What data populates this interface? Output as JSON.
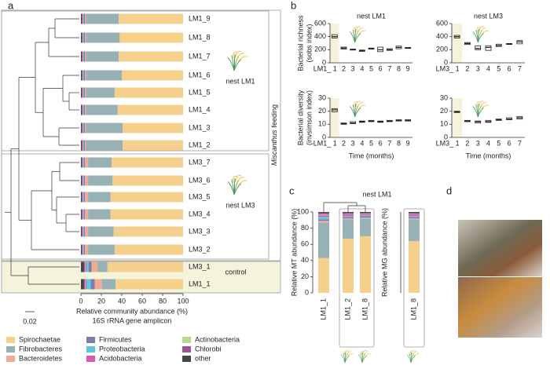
{
  "panel_labels": [
    "a",
    "b",
    "c",
    "d"
  ],
  "chart_data": [
    {
      "type": "stacked-bar-horizontal",
      "categories": [
        "LM1_9",
        "LM1_8",
        "LM1_7",
        "LM1_6",
        "LM1_5",
        "LM1_4",
        "LM1_3",
        "LM1_2",
        "LM3_7",
        "LM3_6",
        "LM3_5",
        "LM3_4",
        "LM3_3",
        "LM3_2",
        "LM3_1",
        "LM1_1"
      ],
      "series": [
        {
          "name": "Spirochaetae",
          "color": "#f5d08c",
          "values": [
            63,
            62,
            63,
            60,
            67,
            64,
            59,
            59,
            70,
            69,
            71,
            71,
            68,
            67,
            74,
            66
          ]
        },
        {
          "name": "Fibrobacteres",
          "color": "#98b1b5",
          "values": [
            32,
            33,
            32,
            35,
            28,
            31,
            36,
            36,
            23,
            24,
            22,
            22,
            25,
            26,
            9.5,
            13.5
          ]
        },
        {
          "name": "Bacteroidetes",
          "color": "#f3aa92",
          "values": [
            1,
            1,
            1,
            1,
            1,
            1,
            1,
            1,
            3,
            3,
            3,
            3,
            3,
            3,
            6,
            7
          ]
        },
        {
          "name": "Firmicutes",
          "color": "#7b7fae",
          "values": [
            1.2,
            1.2,
            1.2,
            1.2,
            1.2,
            1.2,
            1.2,
            1.2,
            1,
            1,
            1,
            1,
            1,
            1,
            3,
            4
          ]
        },
        {
          "name": "Proteobacteria",
          "color": "#5cc7df",
          "values": [
            0.5,
            0.5,
            0.5,
            0.5,
            0.5,
            0.5,
            0.5,
            0.5,
            0.7,
            0.7,
            0.7,
            0.7,
            0.7,
            0.7,
            2,
            4
          ]
        },
        {
          "name": "Acidobacteria",
          "color": "#dd58b6",
          "values": [
            0.5,
            0.5,
            0.5,
            0.5,
            0.5,
            0.5,
            0.5,
            0.5,
            0.5,
            0.5,
            0.5,
            0.5,
            0.5,
            0.5,
            1,
            1
          ]
        },
        {
          "name": "Actinobacteria",
          "color": "#b6d98b",
          "values": [
            0.3,
            0.3,
            0.3,
            0.3,
            0.3,
            0.3,
            0.3,
            0.3,
            0.3,
            0.3,
            0.3,
            0.3,
            0.3,
            0.3,
            0.5,
            0.5
          ]
        },
        {
          "name": "Chlorobi",
          "color": "#9e4f9e",
          "values": [
            0.5,
            0.5,
            0.5,
            0.5,
            0.5,
            0.5,
            0.5,
            0.5,
            0.5,
            0.5,
            0.5,
            0.5,
            0.5,
            0.5,
            1,
            1
          ]
        },
        {
          "name": "other",
          "color": "#454545",
          "values": [
            1,
            1,
            1,
            1,
            1,
            1,
            1,
            1,
            1,
            1,
            1,
            1,
            1,
            1,
            3,
            3
          ]
        }
      ],
      "xlim": [
        0,
        100
      ],
      "xticks": [
        0,
        20,
        40,
        60,
        80,
        100
      ],
      "xlabel": [
        "Relative community abundance (%)",
        "16S rRNA gene amplicon"
      ],
      "groups": [
        "nest LM1",
        "nest LM3",
        "control"
      ],
      "side_label": [
        "Miscanthus",
        "feeding"
      ],
      "scale_bar": "0.02"
    },
    {
      "type": "box",
      "title": "nest LM1",
      "ylabel": [
        "Bacterial richness",
        "(sobs index)"
      ],
      "categories": [
        "LM1_ 1",
        "2",
        "3",
        "4",
        "5",
        "6",
        "7",
        "8",
        "9"
      ],
      "ylim": [
        0,
        600
      ],
      "yticks": [
        0,
        200,
        400,
        600
      ],
      "q1": [
        380,
        210,
        195,
        175,
        210,
        170,
        190,
        215,
        220
      ],
      "median": [
        400,
        225,
        200,
        185,
        215,
        200,
        200,
        235,
        225
      ],
      "q3": [
        430,
        240,
        210,
        195,
        225,
        240,
        215,
        255,
        235
      ]
    },
    {
      "type": "box",
      "title": "nest LM3",
      "categories": [
        "LM3_ 1",
        "2",
        "3",
        "4",
        "5",
        "6",
        "7"
      ],
      "ylim": [
        0,
        600
      ],
      "yticks": [
        0,
        200,
        400,
        600
      ],
      "q1": [
        380,
        280,
        200,
        190,
        250,
        280,
        290
      ],
      "median": [
        400,
        295,
        220,
        235,
        265,
        288,
        320
      ],
      "q3": [
        420,
        310,
        260,
        260,
        285,
        295,
        340
      ]
    },
    {
      "type": "box",
      "ylabel": [
        "Bacterial diversity",
        "(invsimson index)"
      ],
      "xlabel": "Time (months)",
      "categories": [
        "LM1_ 1",
        "2",
        "3",
        "4",
        "5",
        "6",
        "7",
        "8",
        "9"
      ],
      "ylim": [
        0,
        30
      ],
      "yticks": [
        0,
        10,
        20,
        30
      ],
      "q1": [
        19.5,
        10,
        10.5,
        11.5,
        12,
        11.5,
        12,
        12.5,
        12.5
      ],
      "median": [
        21,
        10.5,
        11,
        12,
        12.5,
        12,
        12.5,
        13,
        13
      ],
      "q3": [
        22,
        11,
        12,
        12.5,
        13,
        12.5,
        13,
        13.5,
        13.5
      ]
    },
    {
      "type": "box",
      "xlabel": "Time (months)",
      "categories": [
        "LM3_ 1",
        "2",
        "3",
        "4",
        "5",
        "6",
        "7"
      ],
      "ylim": [
        0,
        30
      ],
      "yticks": [
        0,
        10,
        20,
        30
      ],
      "q1": [
        19,
        12,
        11,
        11.5,
        13,
        13.5,
        14
      ],
      "median": [
        19.5,
        12.5,
        12,
        12,
        13.5,
        14,
        15
      ],
      "q3": [
        20,
        13,
        12.5,
        13,
        14,
        15,
        16
      ]
    },
    {
      "type": "stacked-bar",
      "title": "nest LM1",
      "ylabel": "Relative MT abundance (%)",
      "categories": [
        "LM1_1",
        "LM1_2",
        "LM1_8"
      ],
      "ylim": [
        0,
        100
      ],
      "yticks": [
        0,
        20,
        40,
        60,
        80,
        100
      ],
      "series": [
        {
          "values": [
            43,
            67,
            70
          ]
        },
        {
          "values": [
            44,
            24,
            22
          ]
        },
        {
          "values": [
            2,
            1,
            1
          ]
        },
        {
          "values": [
            2,
            2,
            2
          ]
        },
        {
          "values": [
            3,
            1,
            1
          ]
        },
        {
          "values": [
            2,
            2,
            1.5
          ]
        },
        {
          "values": [
            1,
            0.5,
            0.5
          ]
        },
        {
          "values": [
            2,
            1.5,
            1
          ]
        },
        {
          "values": [
            1,
            1,
            1
          ]
        }
      ]
    },
    {
      "type": "stacked-bar",
      "ylabel": "Relative MG abundance (%)",
      "categories": [
        "LM1_8"
      ],
      "ylim": [
        0,
        100
      ],
      "series": [
        {
          "values": [
            64
          ]
        },
        {
          "values": [
            27
          ]
        },
        {
          "values": [
            1
          ]
        },
        {
          "values": [
            2
          ]
        },
        {
          "values": [
            1
          ]
        },
        {
          "values": [
            2
          ]
        },
        {
          "values": [
            0.5
          ]
        },
        {
          "values": [
            1.5
          ]
        },
        {
          "values": [
            1
          ]
        }
      ]
    }
  ]
}
